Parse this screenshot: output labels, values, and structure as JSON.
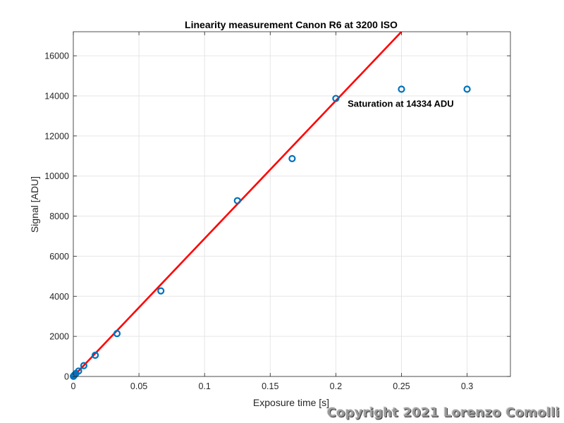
{
  "chart_data": {
    "type": "scatter",
    "title": "Linearity measurement Canon R6 at 3200 ISO",
    "xlabel": "Exposure time [s]",
    "ylabel": "Signal [ADU]",
    "xlim": [
      0,
      0.333
    ],
    "ylim": [
      0,
      17200
    ],
    "xticks": [
      0,
      0.05,
      0.1,
      0.15,
      0.2,
      0.25,
      0.3
    ],
    "xtick_labels": [
      "0",
      "0.05",
      "0.1",
      "0.15",
      "0.2",
      "0.25",
      "0.3"
    ],
    "yticks": [
      0,
      2000,
      4000,
      6000,
      8000,
      10000,
      12000,
      14000,
      16000
    ],
    "ytick_labels": [
      "0",
      "2000",
      "4000",
      "6000",
      "8000",
      "10000",
      "12000",
      "14000",
      "16000"
    ],
    "grid": true,
    "series": [
      {
        "kind": "markers",
        "marker": "circle",
        "color": "#0072BD",
        "x": [
          0.0001,
          0.0002,
          0.0005,
          0.001,
          0.002,
          0.004,
          0.008,
          0.0167,
          0.0333,
          0.0667,
          0.125,
          0.1667,
          0.2,
          0.25,
          0.3
        ],
        "y": [
          10,
          20,
          40,
          80,
          150,
          270,
          540,
          1060,
          2140,
          4270,
          8770,
          10870,
          13870,
          14334,
          14334
        ]
      },
      {
        "kind": "line",
        "color": "#FF0000",
        "x": [
          0,
          0.25
        ],
        "y": [
          0,
          17200
        ]
      }
    ],
    "annotations": [
      {
        "text": "Saturation at 14334 ADU",
        "x": 0.209,
        "y": 13450
      }
    ]
  },
  "watermark": "Copyright 2021 Lorenzo Comolli"
}
